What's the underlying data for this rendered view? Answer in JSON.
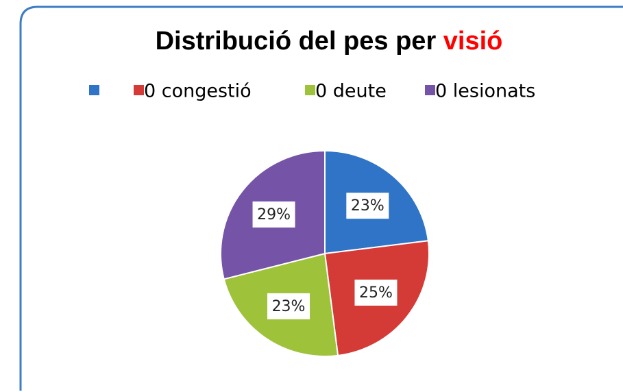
{
  "chart_data": {
    "type": "pie",
    "title_parts": [
      "Distribució del pes per",
      "visió"
    ],
    "title_colors": [
      "#000000",
      "#ff0000"
    ],
    "categories": [
      null,
      "0 congestió",
      "0 deute",
      "0 lesionats"
    ],
    "values": [
      23,
      25,
      23,
      29
    ],
    "value_labels": [
      "23%",
      "25%",
      "23%",
      "29%"
    ],
    "colors": [
      "#2f74c6",
      "#d43b37",
      "#9ec33b",
      "#7553a6"
    ],
    "legend": "top"
  }
}
